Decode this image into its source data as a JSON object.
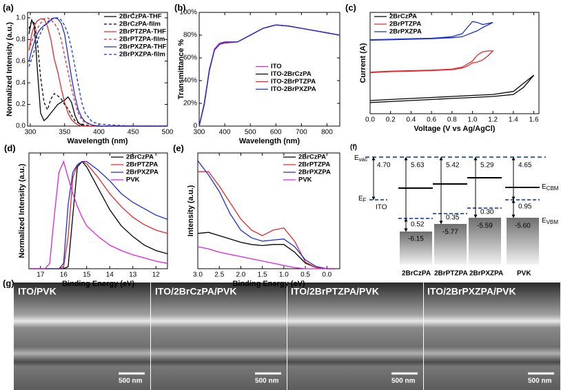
{
  "chart_data": [
    {
      "type": "line",
      "panel_label": "(a)",
      "xlabel": "Wavelength (nm)",
      "ylabel": "Normalized Intensity (a.u.)",
      "xlim": [
        296,
        500
      ],
      "ylim": [
        0,
        1.05
      ],
      "xticks": [
        300,
        350,
        400,
        450,
        500
      ],
      "yticks": [
        {
          "value": 0,
          "label": "0.0"
        },
        0.2,
        0.4,
        0.6,
        0.8,
        {
          "value": 1,
          "label": "1.0"
        }
      ],
      "legend": "upper right",
      "x": [
        298,
        302,
        306,
        310,
        315,
        320,
        325,
        330,
        335,
        340,
        345,
        350,
        355,
        360,
        365,
        370,
        375,
        380,
        390,
        400,
        420,
        450,
        500
      ],
      "series": [
        {
          "name": "2BrCzPA-THF",
          "color": "#000000",
          "linestyle": "solid",
          "values": [
            0.85,
            0.98,
            0.92,
            0.55,
            0.12,
            0.05,
            0.08,
            0.12,
            0.16,
            0.2,
            0.22,
            0.24,
            0.27,
            0.22,
            0.1,
            0.03,
            0.01,
            0,
            0,
            0,
            0,
            0,
            0
          ]
        },
        {
          "name": "2BrCzPA-film",
          "color": "#000000",
          "linestyle": "dashed",
          "values": [
            0.9,
            0.97,
            0.95,
            0.8,
            0.45,
            0.22,
            0.15,
            0.25,
            0.3,
            0.28,
            0.25,
            0.2,
            0.16,
            0.1,
            0.05,
            0.03,
            0.02,
            0.01,
            0,
            0,
            0,
            0,
            0
          ]
        },
        {
          "name": "2BrPTZPA-THF",
          "color": "#e8262a",
          "linestyle": "solid",
          "values": [
            0.7,
            0.85,
            0.93,
            0.97,
            0.99,
            0.99,
            0.92,
            0.8,
            0.62,
            0.5,
            0.35,
            0.22,
            0.12,
            0.06,
            0.03,
            0.01,
            0,
            0,
            0,
            0,
            0,
            0,
            0
          ]
        },
        {
          "name": "2BrPTZPA-film",
          "color": "#e8262a",
          "linestyle": "dashed",
          "values": [
            0.7,
            0.78,
            0.85,
            0.9,
            0.95,
            0.99,
            1.0,
            0.98,
            0.95,
            0.9,
            0.8,
            0.65,
            0.5,
            0.35,
            0.22,
            0.12,
            0.06,
            0.03,
            0.01,
            0,
            0,
            0,
            0
          ]
        },
        {
          "name": "2BrPXZPA-THF",
          "color": "#1c2fd6",
          "linestyle": "solid",
          "values": [
            0.6,
            0.7,
            0.78,
            0.85,
            0.9,
            0.93,
            0.95,
            0.98,
            1.0,
            0.99,
            0.95,
            0.85,
            0.65,
            0.45,
            0.28,
            0.15,
            0.08,
            0.04,
            0.01,
            0,
            0,
            0,
            0
          ]
        },
        {
          "name": "2BrPXZPA-film",
          "color": "#1c2fd6",
          "linestyle": "dashed",
          "values": [
            0.55,
            0.62,
            0.7,
            0.78,
            0.86,
            0.92,
            0.96,
            0.99,
            1.0,
            1.0,
            0.98,
            0.93,
            0.85,
            0.72,
            0.55,
            0.38,
            0.22,
            0.12,
            0.04,
            0.02,
            0.01,
            0,
            0
          ]
        }
      ]
    },
    {
      "type": "line",
      "panel_label": "(b)",
      "xlabel": "Wavelength (nm)",
      "ylabel": "Transmittance %",
      "xlim": [
        300,
        850
      ],
      "ylim": [
        0,
        100
      ],
      "xticks": [
        300,
        400,
        500,
        600,
        700,
        800
      ],
      "yticks": [
        0,
        {
          "value": 20,
          "label": "20%"
        },
        {
          "value": 40,
          "label": "40%"
        },
        {
          "value": 60,
          "label": "60%"
        },
        {
          "value": 80,
          "label": "80%"
        },
        {
          "value": 100,
          "label": "100%"
        }
      ],
      "legend": "center",
      "x": [
        300,
        320,
        340,
        360,
        380,
        400,
        450,
        500,
        550,
        600,
        650,
        700,
        750,
        800,
        850
      ],
      "series": [
        {
          "name": "ITO",
          "color": "#e020e0",
          "linestyle": "solid",
          "values": [
            0,
            20,
            50,
            68,
            73,
            74,
            74,
            80,
            86,
            89,
            88,
            86,
            84,
            82,
            80
          ]
        },
        {
          "name": "ITO-2BrCzPA",
          "color": "#000000",
          "linestyle": "solid",
          "values": [
            0,
            19,
            49,
            67,
            72,
            73,
            74,
            80,
            86,
            89,
            88,
            86,
            84,
            82,
            80
          ]
        },
        {
          "name": "ITO-2BrPTZPA",
          "color": "#e8262a",
          "linestyle": "solid",
          "values": [
            0,
            20,
            50,
            67,
            72,
            73,
            74,
            80,
            86,
            89,
            88,
            86,
            84,
            82,
            80
          ]
        },
        {
          "name": "ITO-2BrPXZPA",
          "color": "#1c2fd6",
          "linestyle": "solid",
          "values": [
            0,
            20,
            49,
            67,
            72,
            74,
            74,
            80,
            86,
            89,
            88,
            86,
            84,
            82,
            80
          ]
        }
      ]
    },
    {
      "type": "line",
      "panel_label": "(c)",
      "xlabel": "Voltage (V vs Ag/AgCl)",
      "ylabel": "Current (A)",
      "xlim": [
        0,
        1.65
      ],
      "ylim": [
        0,
        10
      ],
      "xticks": [
        {
          "value": 0,
          "label": "0.0"
        },
        0.2,
        0.4,
        0.6,
        0.8,
        {
          "value": 1,
          "label": "1.0"
        },
        1.2,
        1.4,
        1.6
      ],
      "legend": "upper left",
      "series": [
        {
          "name": "2BrCzPA",
          "color": "#000000",
          "linestyle": "solid",
          "x": [
            0,
            0.2,
            0.4,
            0.6,
            0.8,
            1.0,
            1.2,
            1.4,
            1.5,
            1.6,
            1.5,
            1.4,
            1.2,
            1.0,
            0.8,
            0.6,
            0.4,
            0.2,
            0
          ],
          "values": [
            1.3,
            1.4,
            1.5,
            1.6,
            1.7,
            1.8,
            1.9,
            2.2,
            3.0,
            3.8,
            2.6,
            1.9,
            1.7,
            1.6,
            1.5,
            1.4,
            1.3,
            1.2,
            1.1
          ]
        },
        {
          "name": "2BrPTZPA",
          "color": "#e8262a",
          "linestyle": "solid",
          "x": [
            0,
            0.2,
            0.4,
            0.6,
            0.8,
            0.9,
            1.0,
            1.05,
            1.1,
            1.15,
            1.2,
            1.15,
            1.1,
            1.05,
            1.0,
            0.95,
            0.9,
            0.8,
            0.6,
            0.4,
            0.2,
            0
          ],
          "values": [
            4.1,
            4.2,
            4.25,
            4.3,
            4.4,
            4.6,
            5.2,
            5.8,
            6.1,
            6.2,
            6.2,
            5.7,
            5.3,
            5.1,
            5.0,
            4.7,
            4.5,
            4.35,
            4.25,
            4.2,
            4.15,
            4.05
          ]
        },
        {
          "name": "2BrPXZPA",
          "color": "#1c2fd6",
          "linestyle": "solid",
          "x": [
            0,
            0.2,
            0.4,
            0.6,
            0.8,
            0.9,
            0.95,
            1.0,
            1.05,
            1.1,
            1.2,
            1.1,
            1.05,
            1.0,
            0.95,
            0.9,
            0.8,
            0.6,
            0.4,
            0.2,
            0
          ],
          "values": [
            7.3,
            7.35,
            7.4,
            7.45,
            7.6,
            7.9,
            8.5,
            9.1,
            9.0,
            8.8,
            9.0,
            8.5,
            8.2,
            8.0,
            7.8,
            7.6,
            7.5,
            7.4,
            7.35,
            7.3,
            7.25
          ]
        }
      ]
    },
    {
      "type": "line",
      "panel_label": "(d)",
      "xlabel": "Binding Energy (eV)",
      "ylabel": "Normalized Intensity (a.u.)",
      "xlim": [
        17.5,
        11.5
      ],
      "ylim": [
        0,
        1.08
      ],
      "xticks": [
        17,
        16,
        15,
        14,
        13,
        12
      ],
      "legend": "upper right",
      "x": [
        17.5,
        17,
        16.8,
        16.6,
        16.4,
        16.2,
        16,
        15.8,
        15.6,
        15.4,
        15.2,
        15,
        14.5,
        14,
        13.5,
        13,
        12.5,
        12,
        11.5
      ],
      "series": [
        {
          "name": "2BrCzPA",
          "color": "#000000",
          "linestyle": "solid",
          "values": [
            0,
            0,
            0,
            0,
            0,
            0,
            0,
            0.02,
            0.5,
            0.95,
            1.0,
            0.95,
            0.75,
            0.55,
            0.4,
            0.3,
            0.22,
            0.17,
            0.14
          ]
        },
        {
          "name": "2BrPTZPA",
          "color": "#e8262a",
          "linestyle": "solid",
          "values": [
            0,
            0,
            0,
            0,
            0,
            0,
            0.02,
            0.3,
            0.85,
            0.97,
            1.0,
            0.98,
            0.85,
            0.7,
            0.58,
            0.48,
            0.41,
            0.36,
            0.33
          ]
        },
        {
          "name": "2BrPXZPA",
          "color": "#1c2fd6",
          "linestyle": "solid",
          "values": [
            0,
            0,
            0,
            0,
            0,
            0,
            0.05,
            0.6,
            0.9,
            0.97,
            1.0,
            1.0,
            0.92,
            0.82,
            0.7,
            0.62,
            0.56,
            0.5,
            0.46
          ]
        },
        {
          "name": "PVK",
          "color": "#e020e0",
          "linestyle": "solid",
          "values": [
            0,
            0,
            0,
            0.05,
            0.5,
            0.9,
            1.0,
            0.85,
            0.7,
            0.58,
            0.48,
            0.4,
            0.3,
            0.22,
            0.17,
            0.13,
            0.1,
            0.07,
            0.05
          ]
        }
      ]
    },
    {
      "type": "line",
      "panel_label": "(e)",
      "xlabel": "Binding Energy (eV)",
      "ylabel": "Intensity (a.u.)",
      "xlim": [
        3.0,
        -0.3
      ],
      "ylim": [
        0,
        1.05
      ],
      "xticks": [
        {
          "value": 3,
          "label": "3.0"
        },
        2.5,
        {
          "value": 2,
          "label": "2.0"
        },
        1.5,
        {
          "value": 1,
          "label": "1.0"
        },
        0.5,
        {
          "value": 0,
          "label": "0.0"
        }
      ],
      "legend": "upper right",
      "x": [
        3.0,
        2.75,
        2.5,
        2.25,
        2.0,
        1.75,
        1.5,
        1.25,
        1.0,
        0.75,
        0.5,
        0.25,
        0.0,
        -0.2
      ],
      "series": [
        {
          "name": "2BrCzPA",
          "color": "#000000",
          "linestyle": "solid",
          "values": [
            0.32,
            0.33,
            0.3,
            0.27,
            0.24,
            0.22,
            0.21,
            0.22,
            0.22,
            0.15,
            0.05,
            0.01,
            0,
            0
          ]
        },
        {
          "name": "2BrPTZPA",
          "color": "#e8262a",
          "linestyle": "solid",
          "values": [
            0.88,
            0.88,
            0.75,
            0.6,
            0.45,
            0.35,
            0.3,
            0.35,
            0.37,
            0.25,
            0.06,
            0.01,
            0,
            0
          ]
        },
        {
          "name": "2BrPXZPA",
          "color": "#1c2fd6",
          "linestyle": "solid",
          "values": [
            0.98,
            0.85,
            0.7,
            0.5,
            0.35,
            0.28,
            0.25,
            0.26,
            0.27,
            0.2,
            0.08,
            0.02,
            0,
            0
          ]
        },
        {
          "name": "PVK",
          "color": "#e020e0",
          "linestyle": "solid",
          "values": [
            0.2,
            0.18,
            0.15,
            0.13,
            0.11,
            0.09,
            0.07,
            0.05,
            0.03,
            0.01,
            0,
            0,
            0,
            0
          ]
        }
      ]
    }
  ],
  "energy_diagram": {
    "panel_label": "(f)",
    "e_vac": {
      "main": "E",
      "sub": "vac"
    },
    "e_cbm": {
      "main": "E",
      "sub": "CBM"
    },
    "e_f": {
      "main": "E",
      "sub": "F"
    },
    "e_vbm": {
      "main": "E",
      "sub": "VBM"
    },
    "ito": {
      "label": "ITO",
      "work_function": "4.70"
    },
    "columns": [
      {
        "name": "2BrCzPA",
        "gap_to_vac": "5.63",
        "offset": "0.52",
        "vbm": "-6.15"
      },
      {
        "name": "2BrPTZPA",
        "gap_to_vac": "5.42",
        "offset": "0.35",
        "vbm": "-5.77"
      },
      {
        "name": "2BrPXZPA",
        "gap_to_vac": "5.29",
        "offset": "0.30",
        "vbm": "-5.59"
      },
      {
        "name": "PVK",
        "gap_to_vac": "4.65",
        "offset": "0.95",
        "vbm": "-5.60"
      }
    ]
  },
  "sem_images": {
    "panel_label": "(g)",
    "panels": [
      {
        "title": "ITO/PVK",
        "scale_bar": "500 nm"
      },
      {
        "title": "ITO/2BrCzPA/PVK",
        "scale_bar": "500 nm"
      },
      {
        "title": "ITO/2BrPTZPA/PVK",
        "scale_bar": "500 nm"
      },
      {
        "title": "ITO/2BrPXZPA/PVK",
        "scale_bar": "500 nm"
      }
    ]
  }
}
